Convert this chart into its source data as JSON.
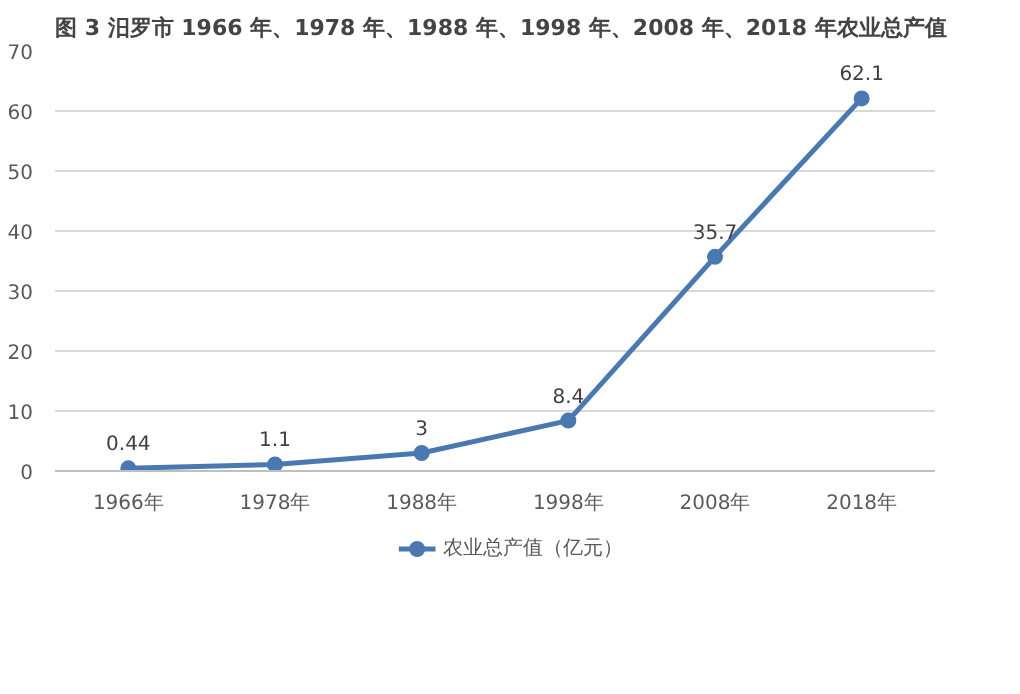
{
  "chart_data": {
    "type": "line",
    "title": "图 3  汨罗市 1966 年、1978 年、1988 年、1998 年、2008 年、2018 年农业总产值",
    "categories": [
      "1966年",
      "1978年",
      "1988年",
      "1998年",
      "2008年",
      "2018年"
    ],
    "series": [
      {
        "name": "农业总产值（亿元）",
        "color": "#4a78b0",
        "values": [
          0.44,
          1.1,
          3,
          8.4,
          35.7,
          62.1
        ]
      }
    ],
    "ylim": [
      0,
      70
    ],
    "yticks": [
      0,
      10,
      20,
      30,
      40,
      50,
      60,
      70
    ],
    "grid": "y",
    "legend": "bottom",
    "marker": "circle",
    "line_style": "solid",
    "data_labels": true
  }
}
